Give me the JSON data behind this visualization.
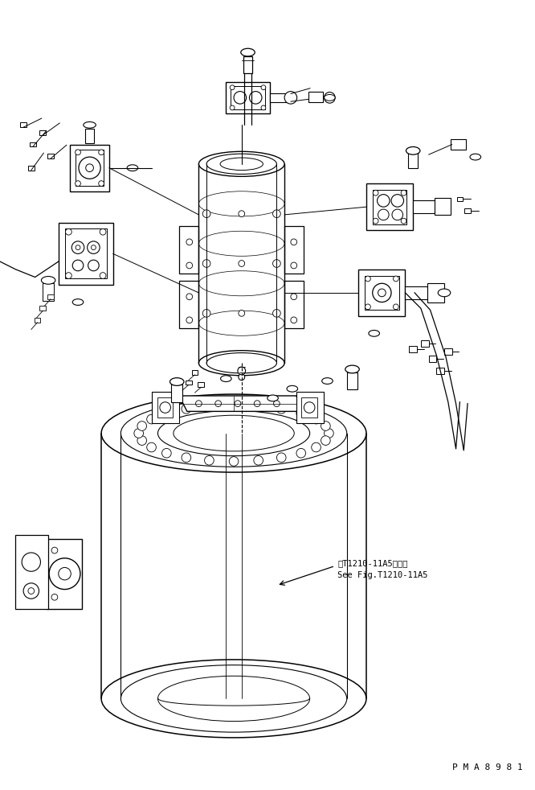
{
  "bg_color": "#ffffff",
  "line_color": "#000000",
  "figsize": [
    6.66,
    9.82
  ],
  "dpi": 100,
  "annotation_text1": "第T1210-11A5図参照",
  "annotation_text2": "See Fig.T1210-11A5",
  "watermark": "P M A 8 9 8 1",
  "font_mono": "DejaVu Sans Mono"
}
